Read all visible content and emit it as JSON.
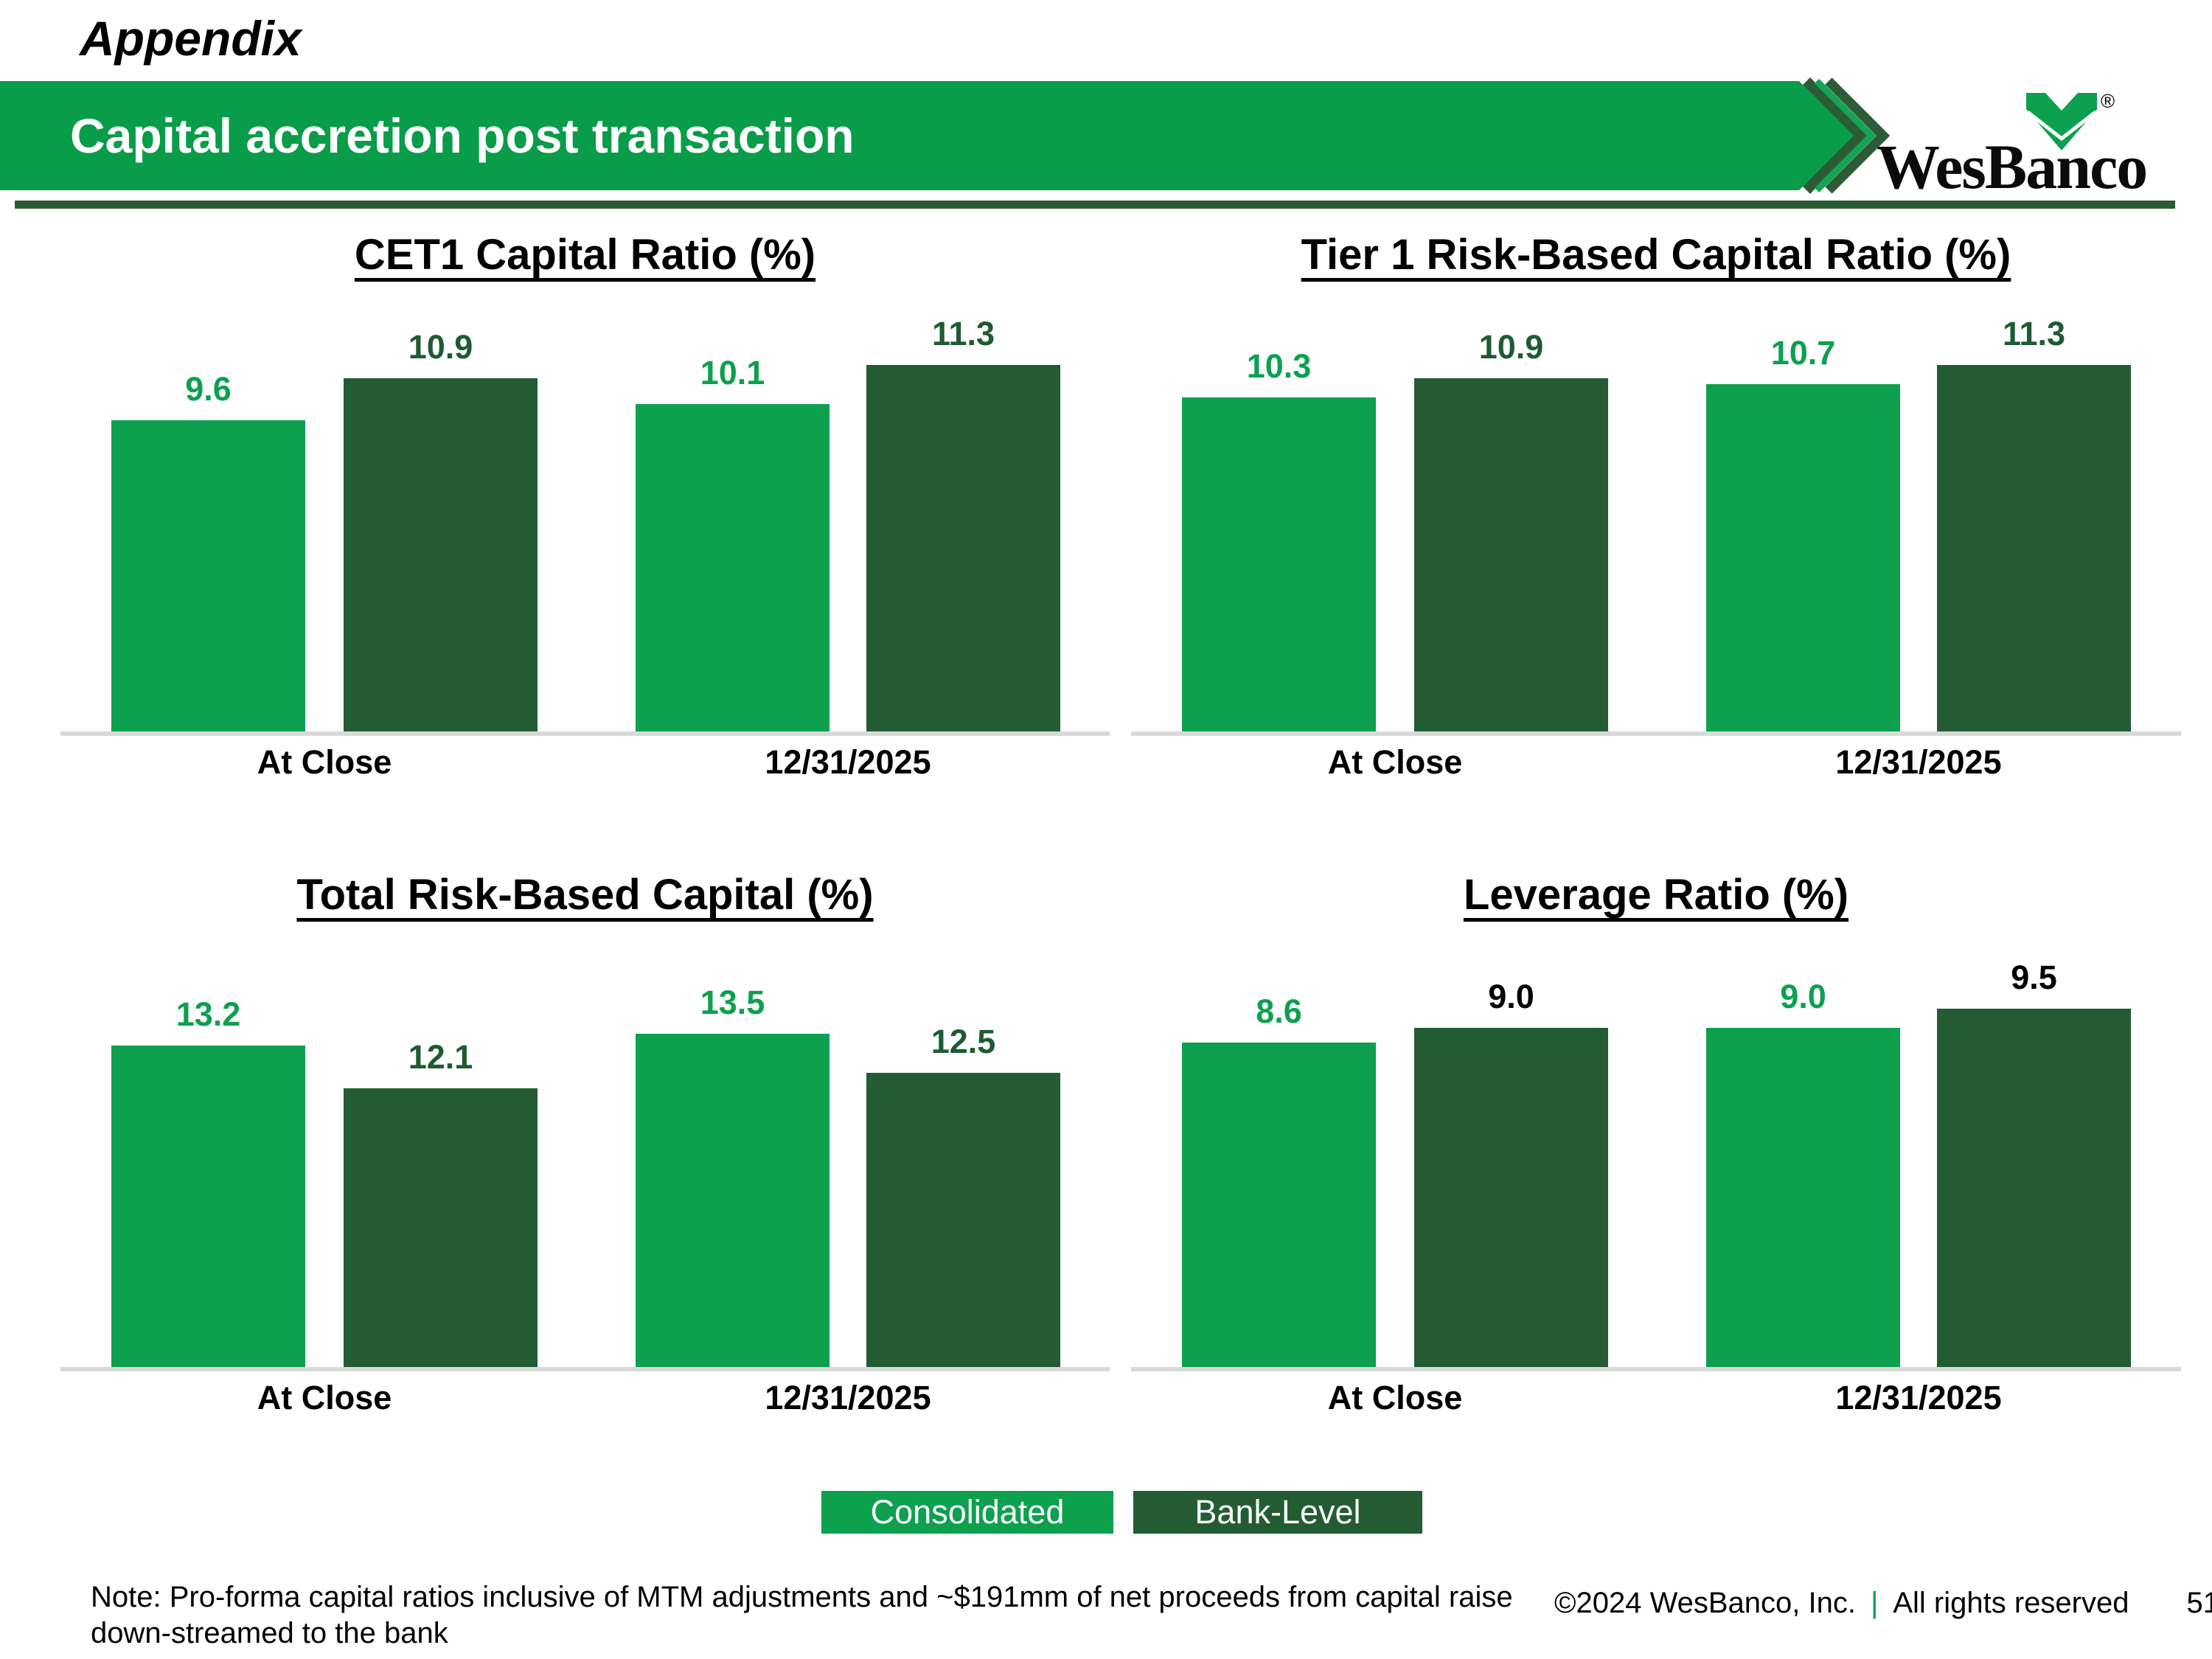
{
  "header": {
    "eyebrow": "Appendix",
    "title": "Capital accretion post transaction",
    "logo_text": "WesBanco",
    "logo_registered": "®"
  },
  "colors": {
    "consolidated_green": "#0DA04F",
    "bank_level_green": "#235C33",
    "banner_green": "#099C49",
    "chevron_dark_green": "#2B5C35",
    "chevron_bright_green": "#15A455",
    "value_label_dark_green": "#1E5B31",
    "value_label_black": "#000000",
    "axis_line_gray": "#D9D9D9",
    "footer_pipe_green": "#0DA04F"
  },
  "chart_data": [
    {
      "type": "bar",
      "title": "CET1 Capital Ratio (%)",
      "categories": [
        "At Close",
        "12/31/2025"
      ],
      "series": [
        {
          "name": "Consolidated",
          "color": "#0DA04F",
          "label_color": "#0DA04F",
          "values": [
            9.6,
            10.1
          ]
        },
        {
          "name": "Bank-Level",
          "color": "#235C33",
          "label_color": "#1E5B31",
          "values": [
            10.9,
            11.3
          ]
        }
      ],
      "ylim": [
        0,
        11.3
      ],
      "grid": false,
      "value_labels": true,
      "legend_position": "none"
    },
    {
      "type": "bar",
      "title": "Tier 1 Risk-Based Capital Ratio (%)",
      "categories": [
        "At Close",
        "12/31/2025"
      ],
      "series": [
        {
          "name": "Consolidated",
          "color": "#0DA04F",
          "label_color": "#0DA04F",
          "values": [
            10.3,
            10.7
          ]
        },
        {
          "name": "Bank-Level",
          "color": "#235C33",
          "label_color": "#1E5B31",
          "values": [
            10.9,
            11.3
          ]
        }
      ],
      "ylim": [
        0,
        11.3
      ],
      "grid": false,
      "value_labels": true,
      "legend_position": "none"
    },
    {
      "type": "bar",
      "title": "Total Risk-Based Capital (%)",
      "categories": [
        "At Close",
        "12/31/2025"
      ],
      "series": [
        {
          "name": "Consolidated",
          "color": "#0DA04F",
          "label_color": "#0DA04F",
          "values": [
            13.2,
            13.5
          ]
        },
        {
          "name": "Bank-Level",
          "color": "#235C33",
          "label_color": "#1E5B31",
          "values": [
            12.1,
            12.5
          ]
        }
      ],
      "ylim": [
        5,
        13.5
      ],
      "grid": false,
      "value_labels": true,
      "legend_position": "none"
    },
    {
      "type": "bar",
      "title": "Leverage Ratio (%)",
      "categories": [
        "At Close",
        "12/31/2025"
      ],
      "series": [
        {
          "name": "Consolidated",
          "color": "#0DA04F",
          "label_color": "#0DA04F",
          "values": [
            8.6,
            9.0
          ]
        },
        {
          "name": "Bank-Level",
          "color": "#235C33",
          "label_color": "#000000",
          "values": [
            9.0,
            9.5
          ]
        }
      ],
      "ylim": [
        0,
        9.5
      ],
      "grid": false,
      "value_labels": true,
      "legend_position": "none"
    }
  ],
  "legend": [
    {
      "label": "Consolidated",
      "color": "#0DA04F"
    },
    {
      "label": "Bank-Level",
      "color": "#235C33"
    }
  ],
  "footnote": {
    "text": "Note: Pro-forma capital ratios inclusive of MTM adjustments and ~$191mm of net proceeds from capital raise down-streamed to the bank"
  },
  "footer": {
    "copyright": "©2024 WesBanco, Inc.",
    "separator": "|",
    "rights": "All rights reserved",
    "page": "51"
  }
}
